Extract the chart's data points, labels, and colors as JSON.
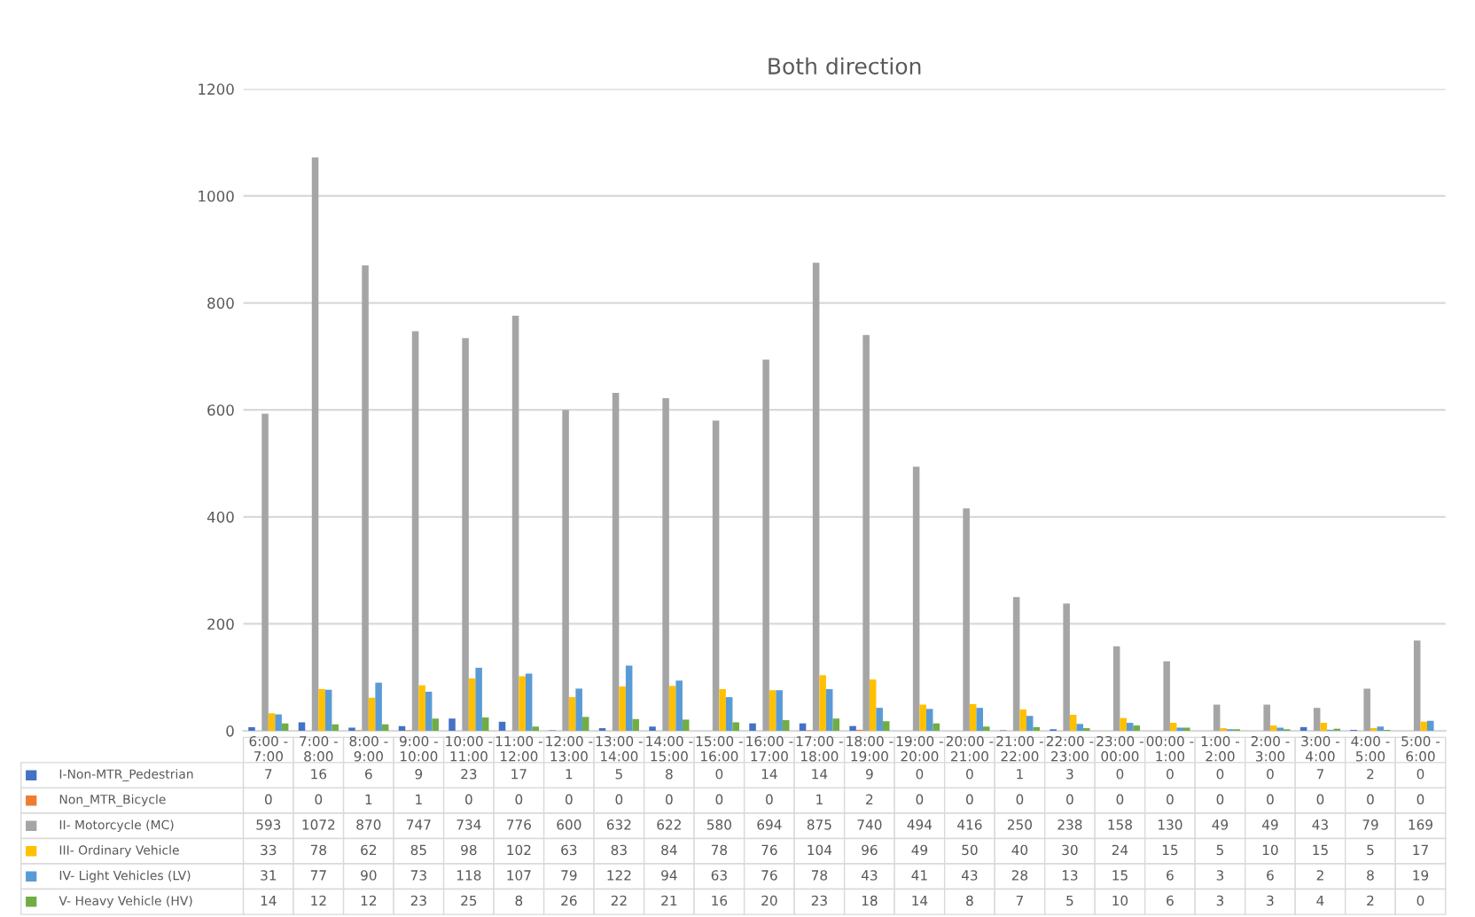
{
  "chart_data": {
    "type": "bar",
    "title": "Both direction",
    "categories": [
      "6:00 -\n7:00",
      "7:00 -\n8:00",
      "8:00 -\n9:00",
      "9:00 -\n10:00",
      "10:00 -\n11:00",
      "11:00 -\n12:00",
      "12:00 -\n13:00",
      "13:00 -\n14:00",
      "14:00 -\n15:00",
      "15:00 -\n16:00",
      "16:00 -\n17:00",
      "17:00 -\n18:00",
      "18:00 -\n19:00",
      "19:00 -\n20:00",
      "20:00 -\n21:00",
      "21:00 -\n22:00",
      "22:00 -\n23:00",
      "23:00 -\n00:00",
      "00:00 -\n1:00",
      "1:00 -\n2:00",
      "2:00 -\n3:00",
      "3:00 -\n4:00",
      "4:00 -\n5:00",
      "5:00 -\n6:00"
    ],
    "series": [
      {
        "name": "I-Non-MTR_Pedestrian",
        "color": "#4472c4",
        "values": [
          7,
          16,
          6,
          9,
          23,
          17,
          1,
          5,
          8,
          0,
          14,
          14,
          9,
          0,
          0,
          1,
          3,
          0,
          0,
          0,
          0,
          7,
          2,
          0
        ]
      },
      {
        "name": "Non_MTR_Bicycle",
        "color": "#ed7d31",
        "values": [
          0,
          0,
          1,
          1,
          0,
          0,
          0,
          0,
          0,
          0,
          0,
          1,
          2,
          0,
          0,
          0,
          0,
          0,
          0,
          0,
          0,
          0,
          0,
          0
        ]
      },
      {
        "name": "II- Motorcycle (MC)",
        "color": "#a5a5a5",
        "values": [
          593,
          1072,
          870,
          747,
          734,
          776,
          600,
          632,
          622,
          580,
          694,
          875,
          740,
          494,
          416,
          250,
          238,
          158,
          130,
          49,
          49,
          43,
          79,
          169
        ]
      },
      {
        "name": "III- Ordinary Vehicle",
        "color": "#ffc000",
        "values": [
          33,
          78,
          62,
          85,
          98,
          102,
          63,
          83,
          84,
          78,
          76,
          104,
          96,
          49,
          50,
          40,
          30,
          24,
          15,
          5,
          10,
          15,
          5,
          17
        ]
      },
      {
        "name": "IV- Light Vehicles (LV)",
        "color": "#5b9bd5",
        "values": [
          31,
          77,
          90,
          73,
          118,
          107,
          79,
          122,
          94,
          63,
          76,
          78,
          43,
          41,
          43,
          28,
          13,
          15,
          6,
          3,
          6,
          2,
          8,
          19
        ]
      },
      {
        "name": "V- Heavy Vehicle (HV)",
        "color": "#70ad47",
        "values": [
          14,
          12,
          12,
          23,
          25,
          8,
          26,
          22,
          21,
          16,
          20,
          23,
          18,
          14,
          8,
          7,
          5,
          10,
          6,
          3,
          3,
          4,
          2,
          0
        ]
      }
    ],
    "ylim": [
      0,
      1200
    ],
    "yticks": [
      0,
      200,
      400,
      600,
      800,
      1000,
      1200
    ],
    "grid": "y",
    "data_labels": true,
    "legend": "bottom left"
  }
}
